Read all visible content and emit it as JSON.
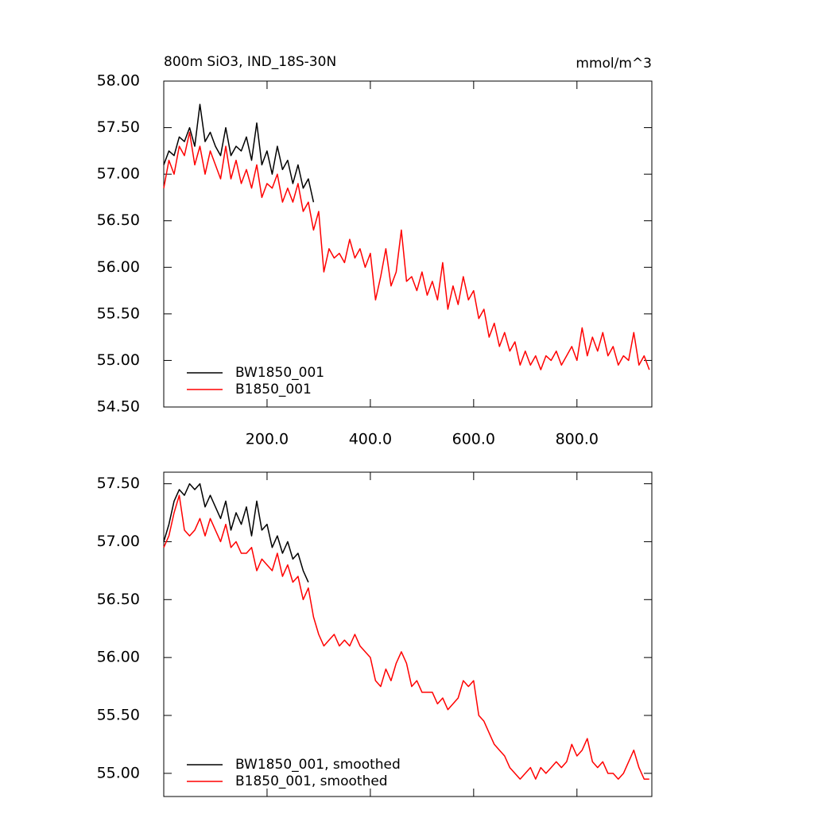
{
  "chart_data": [
    {
      "type": "line",
      "left_title": "800m SiO3, IND_18S-30N",
      "right_title": "mmol/m^3",
      "xlim": [
        0,
        945
      ],
      "ylim": [
        54.5,
        58.0
      ],
      "xticks": [
        {
          "value": 200,
          "label": "200.0"
        },
        {
          "value": 400,
          "label": "400.0"
        },
        {
          "value": 600,
          "label": "600.0"
        },
        {
          "value": 800,
          "label": "800.0"
        }
      ],
      "yticks": [
        {
          "value": 54.5,
          "label": "54.50"
        },
        {
          "value": 55.0,
          "label": "55.00"
        },
        {
          "value": 55.5,
          "label": "55.50"
        },
        {
          "value": 56.0,
          "label": "56.00"
        },
        {
          "value": 56.5,
          "label": "56.50"
        },
        {
          "value": 57.0,
          "label": "57.00"
        },
        {
          "value": 57.5,
          "label": "57.50"
        },
        {
          "value": 58.0,
          "label": "58.00"
        }
      ],
      "series": [
        {
          "name": "BW1850_001",
          "color": "#000000",
          "x": [
            0,
            10,
            20,
            30,
            40,
            50,
            60,
            70,
            80,
            90,
            100,
            110,
            120,
            130,
            140,
            150,
            160,
            170,
            180,
            190,
            200,
            210,
            220,
            230,
            240,
            250,
            260,
            270,
            280,
            290
          ],
          "values": [
            57.1,
            57.25,
            57.2,
            57.4,
            57.35,
            57.5,
            57.3,
            57.75,
            57.35,
            57.45,
            57.3,
            57.2,
            57.5,
            57.2,
            57.3,
            57.25,
            57.4,
            57.15,
            57.55,
            57.1,
            57.25,
            57.0,
            57.3,
            57.05,
            57.15,
            56.9,
            57.1,
            56.85,
            56.95,
            56.7
          ]
        },
        {
          "name": "B1850_001",
          "color": "#ff0000",
          "x": [
            0,
            10,
            20,
            30,
            40,
            50,
            60,
            70,
            80,
            90,
            100,
            110,
            120,
            130,
            140,
            150,
            160,
            170,
            180,
            190,
            200,
            210,
            220,
            230,
            240,
            250,
            260,
            270,
            280,
            290,
            300,
            310,
            320,
            330,
            340,
            350,
            360,
            370,
            380,
            390,
            400,
            410,
            420,
            430,
            440,
            450,
            460,
            470,
            480,
            490,
            500,
            510,
            520,
            530,
            540,
            550,
            560,
            570,
            580,
            590,
            600,
            610,
            620,
            630,
            640,
            650,
            660,
            670,
            680,
            690,
            700,
            710,
            720,
            730,
            740,
            750,
            760,
            770,
            780,
            790,
            800,
            810,
            820,
            830,
            840,
            850,
            860,
            870,
            880,
            890,
            900,
            910,
            920,
            930,
            940
          ],
          "values": [
            56.85,
            57.15,
            57.0,
            57.3,
            57.2,
            57.45,
            57.1,
            57.3,
            57.0,
            57.25,
            57.1,
            56.95,
            57.3,
            56.95,
            57.15,
            56.9,
            57.05,
            56.85,
            57.1,
            56.75,
            56.9,
            56.85,
            57.0,
            56.7,
            56.85,
            56.7,
            56.9,
            56.6,
            56.7,
            56.4,
            56.6,
            55.95,
            56.2,
            56.1,
            56.15,
            56.05,
            56.3,
            56.1,
            56.2,
            56.0,
            56.15,
            55.65,
            55.9,
            56.2,
            55.8,
            55.95,
            56.4,
            55.85,
            55.9,
            55.75,
            55.95,
            55.7,
            55.85,
            55.65,
            56.05,
            55.55,
            55.8,
            55.6,
            55.9,
            55.65,
            55.75,
            55.45,
            55.55,
            55.25,
            55.4,
            55.15,
            55.3,
            55.1,
            55.2,
            54.95,
            55.1,
            54.95,
            55.05,
            54.9,
            55.05,
            55.0,
            55.1,
            54.95,
            55.05,
            55.15,
            55.0,
            55.35,
            55.05,
            55.25,
            55.1,
            55.3,
            55.05,
            55.15,
            54.95,
            55.05,
            55.0,
            55.3,
            54.95,
            55.05,
            54.9
          ]
        }
      ]
    },
    {
      "type": "line",
      "xlim": [
        0,
        945
      ],
      "ylim": [
        54.8,
        57.6
      ],
      "xticks": [
        200,
        400,
        600,
        800
      ],
      "xtick_labels": false,
      "yticks": [
        {
          "value": 55.0,
          "label": "55.00"
        },
        {
          "value": 55.5,
          "label": "55.50"
        },
        {
          "value": 56.0,
          "label": "56.00"
        },
        {
          "value": 56.5,
          "label": "56.50"
        },
        {
          "value": 57.0,
          "label": "57.00"
        },
        {
          "value": 57.5,
          "label": "57.50"
        }
      ],
      "series": [
        {
          "name": "BW1850_001, smoothed",
          "color": "#000000",
          "x": [
            0,
            10,
            20,
            30,
            40,
            50,
            60,
            70,
            80,
            90,
            100,
            110,
            120,
            130,
            140,
            150,
            160,
            170,
            180,
            190,
            200,
            210,
            220,
            230,
            240,
            250,
            260,
            270,
            280
          ],
          "values": [
            57.0,
            57.15,
            57.35,
            57.45,
            57.4,
            57.5,
            57.45,
            57.5,
            57.3,
            57.4,
            57.3,
            57.2,
            57.35,
            57.1,
            57.25,
            57.15,
            57.3,
            57.05,
            57.35,
            57.1,
            57.15,
            56.95,
            57.05,
            56.9,
            57.0,
            56.85,
            56.9,
            56.75,
            56.65
          ]
        },
        {
          "name": "B1850_001, smoothed",
          "color": "#ff0000",
          "x": [
            0,
            10,
            20,
            30,
            40,
            50,
            60,
            70,
            80,
            90,
            100,
            110,
            120,
            130,
            140,
            150,
            160,
            170,
            180,
            190,
            200,
            210,
            220,
            230,
            240,
            250,
            260,
            270,
            280,
            290,
            300,
            310,
            320,
            330,
            340,
            350,
            360,
            370,
            380,
            390,
            400,
            410,
            420,
            430,
            440,
            450,
            460,
            470,
            480,
            490,
            500,
            510,
            520,
            530,
            540,
            550,
            560,
            570,
            580,
            590,
            600,
            610,
            620,
            630,
            640,
            650,
            660,
            670,
            680,
            690,
            700,
            710,
            720,
            730,
            740,
            750,
            760,
            770,
            780,
            790,
            800,
            810,
            820,
            830,
            840,
            850,
            860,
            870,
            880,
            890,
            900,
            910,
            920,
            930,
            940
          ],
          "values": [
            56.95,
            57.05,
            57.25,
            57.4,
            57.1,
            57.05,
            57.1,
            57.2,
            57.05,
            57.2,
            57.1,
            57.0,
            57.15,
            56.95,
            57.0,
            56.9,
            56.9,
            56.95,
            56.75,
            56.85,
            56.8,
            56.75,
            56.9,
            56.7,
            56.8,
            56.65,
            56.7,
            56.5,
            56.6,
            56.35,
            56.2,
            56.1,
            56.15,
            56.2,
            56.1,
            56.15,
            56.1,
            56.2,
            56.1,
            56.05,
            56.0,
            55.8,
            55.75,
            55.9,
            55.8,
            55.95,
            56.05,
            55.95,
            55.75,
            55.8,
            55.7,
            55.7,
            55.7,
            55.6,
            55.65,
            55.55,
            55.6,
            55.65,
            55.8,
            55.75,
            55.8,
            55.5,
            55.45,
            55.35,
            55.25,
            55.2,
            55.15,
            55.05,
            55.0,
            54.95,
            55.0,
            55.05,
            54.95,
            55.05,
            55.0,
            55.05,
            55.1,
            55.05,
            55.1,
            55.25,
            55.15,
            55.2,
            55.3,
            55.1,
            55.05,
            55.1,
            55.0,
            55.0,
            54.95,
            55.0,
            55.1,
            55.2,
            55.05,
            54.95,
            54.95
          ]
        }
      ]
    }
  ]
}
